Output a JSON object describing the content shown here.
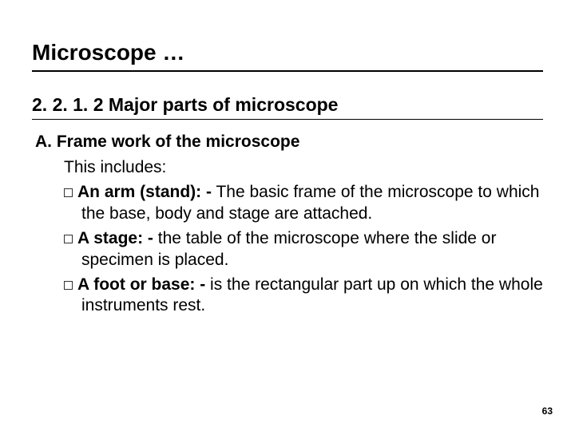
{
  "title": "Microscope …",
  "subtitle": "2. 2. 1. 2  Major parts of microscope",
  "section_heading": "A. Frame work of the microscope",
  "intro": "This includes:",
  "bullets": [
    {
      "term": "An arm (stand): -",
      "desc": " The basic frame of the microscope to which the base, body and stage are attached."
    },
    {
      "term": "A stage: -",
      "desc": " the table of the microscope where the slide or specimen is placed."
    },
    {
      "term": "A foot or base: -",
      "desc": " is the rectangular part up on which the whole instruments rest."
    }
  ],
  "page_number": "63"
}
